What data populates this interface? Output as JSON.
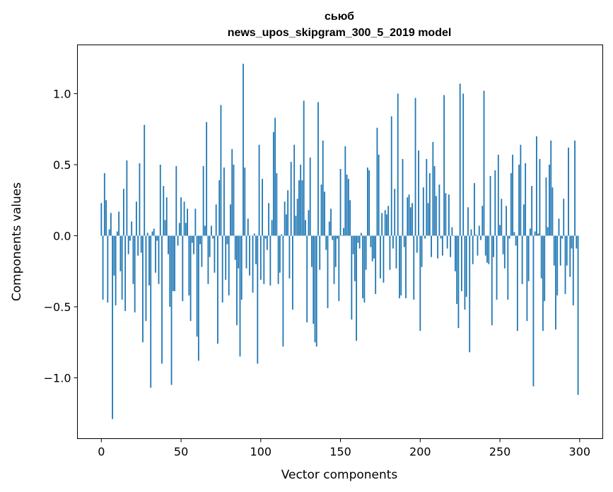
{
  "chart_data": {
    "type": "bar",
    "title": "сьюб",
    "subtitle": "news_upos_skipgram_300_5_2019 model",
    "xlabel": "Vector components",
    "ylabel": "Components values",
    "xlim": [
      -15,
      314.5
    ],
    "ylim": [
      -1.428,
      1.343
    ],
    "xticks": [
      0,
      50,
      100,
      150,
      200,
      250,
      300
    ],
    "xtick_labels": [
      "0",
      "50",
      "100",
      "150",
      "200",
      "250",
      "300"
    ],
    "yticks": [
      -1.0,
      -0.5,
      0.0,
      0.5,
      1.0
    ],
    "ytick_labels": [
      "−1.0",
      "−0.5",
      "0.0",
      "0.5",
      "1.0"
    ],
    "grid": false,
    "bar_color": "#1f77b4",
    "values": [
      0.23,
      -0.45,
      0.44,
      0.25,
      -0.47,
      0.045,
      0.16,
      -1.29,
      -0.28,
      -0.49,
      0.03,
      0.17,
      -0.25,
      -0.45,
      0.33,
      -0.53,
      0.53,
      -0.13,
      -0.035,
      0.1,
      -0.34,
      -0.54,
      0.24,
      -0.14,
      0.51,
      -0.12,
      -0.75,
      0.78,
      -0.6,
      0.02,
      -0.35,
      -1.07,
      0.03,
      0.05,
      -0.26,
      -0.035,
      -0.34,
      0.5,
      -0.9,
      0.35,
      0.11,
      0.27,
      -0.13,
      -0.5,
      -1.05,
      -0.39,
      -0.39,
      0.49,
      -0.07,
      0.09,
      0.27,
      -0.46,
      0.24,
      0.09,
      0.19,
      -0.42,
      -0.6,
      -0.05,
      -0.13,
      0.19,
      -0.71,
      -0.88,
      -0.06,
      -0.22,
      0.49,
      0.07,
      0.8,
      -0.34,
      -0.15,
      0.07,
      -0.02,
      -0.26,
      0.22,
      -0.76,
      0.39,
      0.92,
      -0.47,
      0.48,
      -0.31,
      -0.06,
      -0.42,
      0.22,
      0.61,
      0.5,
      -0.17,
      -0.63,
      -0.23,
      -0.85,
      -0.45,
      1.21,
      0.48,
      -0.23,
      0.12,
      -0.28,
      0.0,
      -0.4,
      0.015,
      -0.2,
      -0.9,
      0.64,
      -0.31,
      0.4,
      -0.34,
      -0.02,
      -0.1,
      0.23,
      -0.35,
      0.11,
      0.73,
      0.83,
      0.44,
      -0.34,
      -0.26,
      0.01,
      -0.78,
      0.24,
      0.15,
      0.32,
      -0.3,
      0.52,
      -0.52,
      0.64,
      0.14,
      0.26,
      0.39,
      0.5,
      0.39,
      0.95,
      0.11,
      -0.61,
      0.18,
      0.55,
      -0.22,
      -0.62,
      -0.75,
      -0.78,
      0.94,
      -0.24,
      0.36,
      0.67,
      0.31,
      -0.1,
      -0.51,
      0.1,
      0.19,
      -0.03,
      -0.34,
      -0.22,
      -0.02,
      -0.46,
      0.47,
      -0.003,
      0.055,
      0.63,
      0.43,
      0.4,
      0.25,
      -0.59,
      -0.13,
      -0.32,
      -0.74,
      -0.05,
      -0.09,
      0.02,
      -0.44,
      -0.47,
      -0.24,
      0.48,
      0.46,
      -0.08,
      -0.18,
      -0.16,
      -0.41,
      0.76,
      0.57,
      -0.3,
      0.16,
      -0.33,
      0.18,
      0.15,
      0.21,
      -0.24,
      0.84,
      -0.09,
      0.33,
      -0.23,
      1.0,
      -0.44,
      -0.42,
      0.54,
      -0.08,
      -0.44,
      0.27,
      0.29,
      0.2,
      0.23,
      -0.45,
      0.97,
      -0.12,
      0.6,
      -0.67,
      -0.22,
      0.34,
      -0.02,
      0.54,
      0.23,
      0.44,
      -0.15,
      0.66,
      0.49,
      0.28,
      -0.16,
      0.36,
      -0.02,
      -0.14,
      0.99,
      0.3,
      -0.09,
      0.29,
      -0.15,
      0.06,
      -0.003,
      -0.25,
      -0.48,
      -0.65,
      1.07,
      -0.39,
      1.0,
      -0.52,
      -0.43,
      0.2,
      -0.82,
      0.045,
      -0.2,
      0.37,
      0.007,
      -0.14,
      0.07,
      -0.03,
      0.21,
      1.02,
      -0.14,
      -0.19,
      -0.2,
      0.42,
      -0.63,
      -0.15,
      0.46,
      -0.45,
      0.57,
      0.075,
      0.26,
      -0.13,
      -0.23,
      0.21,
      -0.45,
      -0.02,
      0.44,
      0.57,
      0.025,
      -0.07,
      -0.67,
      0.5,
      0.64,
      -0.34,
      0.22,
      0.51,
      -0.6,
      -0.32,
      0.05,
      0.35,
      -1.06,
      0.03,
      0.7,
      0.015,
      0.54,
      -0.3,
      -0.67,
      -0.46,
      0.41,
      0.06,
      0.5,
      0.67,
      0.34,
      -0.21,
      -0.66,
      -0.42,
      0.12,
      -0.21,
      -0.02,
      0.26,
      -0.41,
      -0.21,
      0.62,
      -0.29,
      -0.09,
      -0.49,
      0.67,
      -0.09,
      -1.12
    ]
  }
}
